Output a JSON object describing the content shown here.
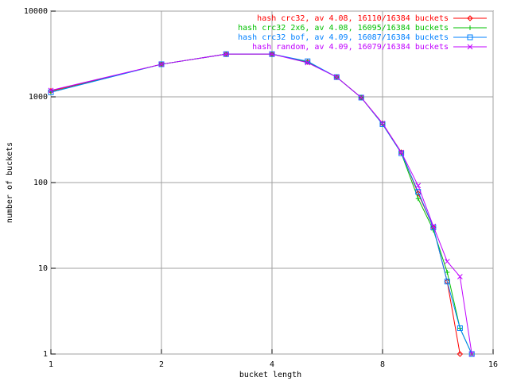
{
  "chart_data": {
    "type": "line",
    "xlabel": "bucket length",
    "ylabel": "number of buckets",
    "x": [
      1,
      2,
      3,
      4,
      5,
      6,
      7,
      8,
      9,
      10,
      11,
      12,
      13,
      14
    ],
    "series": [
      {
        "name": "hash crc32, av 4.08, 16110/16384 buckets",
        "color": "#ff0000",
        "marker": "diamond",
        "values": [
          1170,
          2400,
          3150,
          3150,
          2550,
          1700,
          980,
          490,
          225,
          75,
          30,
          7,
          1,
          null
        ]
      },
      {
        "name": "hash crc32 2x6, av 4.08, 16095/16384 buckets",
        "color": "#00c000",
        "marker": "plus",
        "values": [
          1140,
          2400,
          3150,
          3150,
          2550,
          1700,
          980,
          480,
          220,
          65,
          28,
          9,
          2,
          1
        ]
      },
      {
        "name": "hash crc32 bof, av 4.09, 16087/16384 buckets",
        "color": "#0080ff",
        "marker": "square",
        "values": [
          1130,
          2400,
          3150,
          3150,
          2600,
          1700,
          980,
          480,
          220,
          78,
          30,
          7,
          2,
          1
        ]
      },
      {
        "name": "hash random, av 4.09, 16079/16384 buckets",
        "color": "#c000ff",
        "marker": "cross",
        "values": [
          1190,
          2400,
          3150,
          3150,
          2500,
          1700,
          980,
          490,
          225,
          92,
          31,
          12,
          8,
          1
        ]
      }
    ],
    "xlim": [
      1,
      16
    ],
    "xticks": [
      1,
      2,
      4,
      8,
      16
    ],
    "xscale": "log",
    "ylim": [
      1,
      10000
    ],
    "yticks": [
      1,
      10,
      100,
      1000,
      10000
    ],
    "yscale": "log",
    "grid": true,
    "legend": "top-right"
  }
}
